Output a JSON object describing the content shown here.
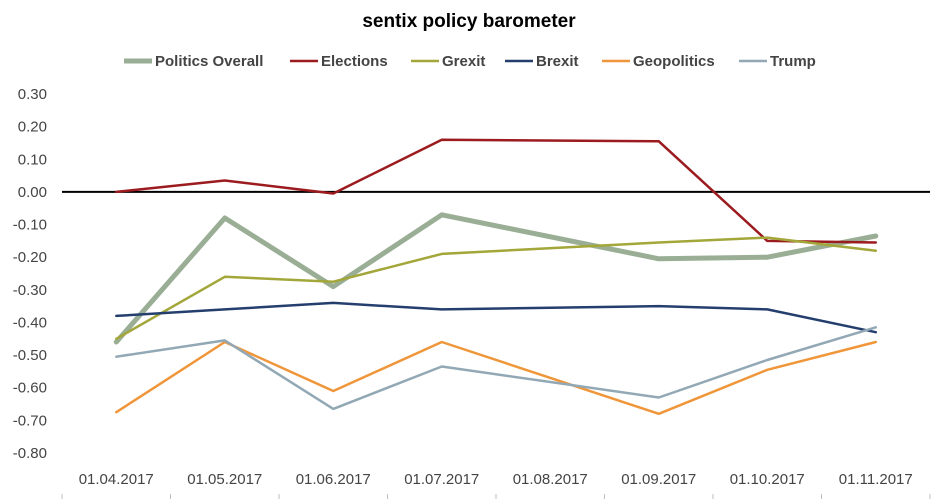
{
  "chart_data": {
    "type": "line",
    "title": "sentix policy barometer",
    "xlabel": "",
    "ylabel": "",
    "categories": [
      "01.04.2017",
      "01.05.2017",
      "01.06.2017",
      "01.07.2017",
      "01.08.2017",
      "01.09.2017",
      "01.10.2017",
      "01.11.2017"
    ],
    "ylim": [
      -0.8,
      0.3
    ],
    "yticks": [
      "0.30",
      "0.20",
      "0.10",
      "0.00",
      "-0.10",
      "-0.20",
      "-0.30",
      "-0.40",
      "-0.50",
      "-0.60",
      "-0.70",
      "-0.80"
    ],
    "grid": false,
    "legend_position": "top",
    "series": [
      {
        "name": "Politics Overall",
        "color": "#9aae95",
        "emphasis": true,
        "values": [
          -0.46,
          -0.08,
          -0.29,
          -0.07,
          null,
          -0.205,
          -0.2,
          -0.135
        ]
      },
      {
        "name": "Elections",
        "color": "#9b1b1e",
        "values": [
          0.0,
          0.035,
          -0.005,
          0.16,
          null,
          0.155,
          -0.15,
          -0.155
        ]
      },
      {
        "name": "Grexit",
        "color": "#a3a639",
        "values": [
          -0.45,
          -0.26,
          -0.275,
          -0.19,
          null,
          -0.155,
          -0.14,
          -0.18
        ]
      },
      {
        "name": "Brexit",
        "color": "#243f6e",
        "values": [
          -0.38,
          -0.36,
          -0.34,
          -0.36,
          null,
          -0.35,
          -0.36,
          -0.43
        ]
      },
      {
        "name": "Geopolitics",
        "color": "#f0963a",
        "values": [
          -0.675,
          -0.46,
          -0.61,
          -0.46,
          null,
          -0.68,
          -0.545,
          -0.46
        ]
      },
      {
        "name": "Trump",
        "color": "#92a8b5",
        "values": [
          -0.505,
          -0.455,
          -0.665,
          -0.535,
          null,
          -0.63,
          -0.515,
          -0.415
        ]
      }
    ]
  }
}
